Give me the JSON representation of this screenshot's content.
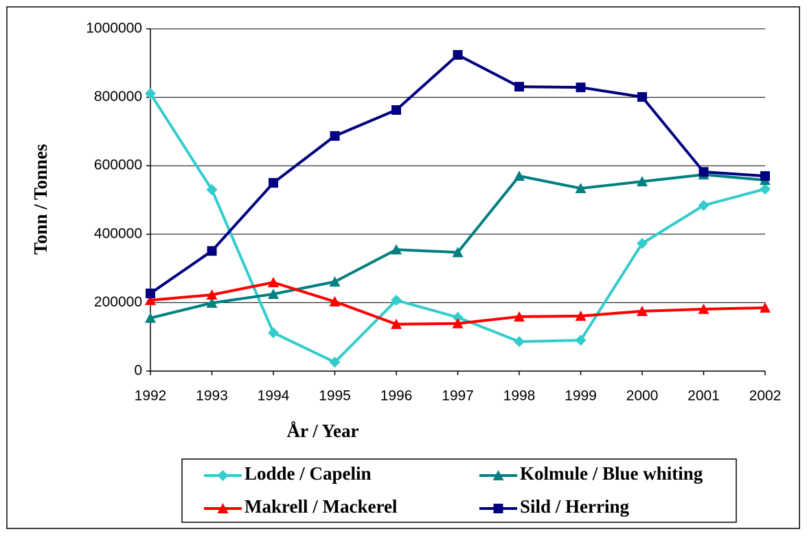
{
  "chart_data": {
    "type": "line",
    "x_label": "År / Year",
    "y_label": "Tonn / Tonnes",
    "categories": [
      "1992",
      "1993",
      "1994",
      "1995",
      "1996",
      "1997",
      "1998",
      "1999",
      "2000",
      "2001",
      "2002"
    ],
    "series": [
      {
        "name": "Lodde / Capelin",
        "color": "#33CCCC",
        "marker": "diamond",
        "values": [
          811000,
          530000,
          112000,
          26000,
          207000,
          157000,
          86000,
          90000,
          373000,
          484000,
          532000
        ]
      },
      {
        "name": "Kolmule / Blue whiting",
        "color": "#008080",
        "marker": "triangle",
        "values": [
          155000,
          199000,
          225000,
          261000,
          355000,
          347000,
          570000,
          534000,
          554000,
          574000,
          558000
        ]
      },
      {
        "name": "Makrell / Mackerel",
        "color": "#FF0000",
        "marker": "triangle",
        "values": [
          207000,
          223000,
          259000,
          203000,
          137000,
          139000,
          159000,
          161000,
          175000,
          181000,
          185000
        ]
      },
      {
        "name": "Sild / Herring",
        "color": "#000080",
        "marker": "square",
        "values": [
          227000,
          351000,
          550000,
          687000,
          763000,
          924000,
          831000,
          829000,
          801000,
          582000,
          570000
        ]
      }
    ],
    "ylim": [
      0,
      1000000
    ],
    "yticks": [
      0,
      200000,
      400000,
      600000,
      800000,
      1000000
    ],
    "grid": true,
    "legend": "bottom"
  }
}
